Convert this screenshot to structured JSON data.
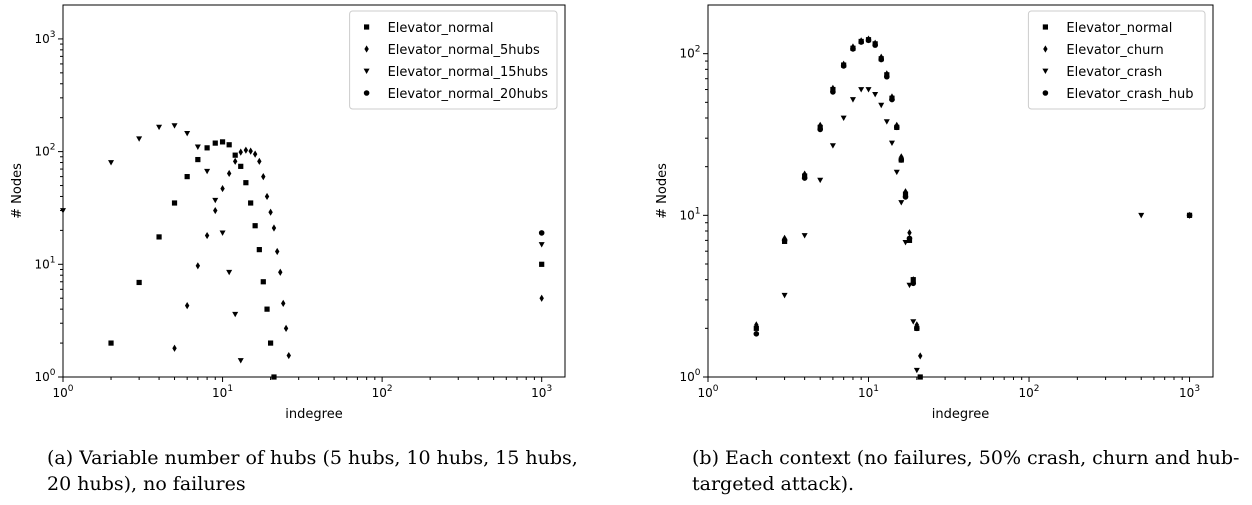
{
  "chart_data": [
    {
      "type": "scatter",
      "xlabel": "indegree",
      "ylabel": "# Nodes",
      "xscale": "log",
      "yscale": "log",
      "xlim": [
        1,
        1400
      ],
      "ylim": [
        1,
        2000
      ],
      "xticks": [
        1,
        10,
        100,
        1000
      ],
      "yticks": [
        1,
        10,
        100,
        1000
      ],
      "legend_position": "top-right",
      "caption": "(a) Variable number of hubs (5 hubs, 10 hubs, 15 hubs, 20 hubs), no failures",
      "series": [
        {
          "name": "Elevator_normal",
          "marker": "square",
          "points": [
            [
              2,
              2
            ],
            [
              3,
              6.9
            ],
            [
              4,
              17.5
            ],
            [
              5,
              35
            ],
            [
              6,
              60
            ],
            [
              7,
              85
            ],
            [
              8,
              108
            ],
            [
              9,
              119
            ],
            [
              10,
              122
            ],
            [
              11,
              115
            ],
            [
              12,
              93
            ],
            [
              13,
              74
            ],
            [
              14,
              53
            ],
            [
              15,
              35
            ],
            [
              16,
              22
            ],
            [
              17,
              13.5
            ],
            [
              18,
              7
            ],
            [
              19,
              4
            ],
            [
              20,
              2
            ],
            [
              21,
              1
            ],
            [
              1000,
              10
            ]
          ]
        },
        {
          "name": "Elevator_normal_5hubs",
          "marker": "diamond",
          "points": [
            [
              5,
              1.8
            ],
            [
              6,
              4.3
            ],
            [
              7,
              9.7
            ],
            [
              8,
              18
            ],
            [
              9,
              30
            ],
            [
              10,
              47
            ],
            [
              11,
              64
            ],
            [
              12,
              82
            ],
            [
              13,
              99
            ],
            [
              14,
              103
            ],
            [
              15,
              101
            ],
            [
              16,
              95
            ],
            [
              17,
              82
            ],
            [
              18,
              60
            ],
            [
              19,
              40
            ],
            [
              20,
              29
            ],
            [
              21,
              21
            ],
            [
              22,
              13
            ],
            [
              23,
              8.5
            ],
            [
              24,
              4.5
            ],
            [
              25,
              2.7
            ],
            [
              26,
              1.55
            ],
            [
              1000,
              5
            ]
          ]
        },
        {
          "name": "Elevator_normal_15hubs",
          "marker": "triangle-down",
          "points": [
            [
              1,
              30
            ],
            [
              2,
              80
            ],
            [
              3,
              130
            ],
            [
              4,
              165
            ],
            [
              5,
              170
            ],
            [
              6,
              145
            ],
            [
              7,
              110
            ],
            [
              8,
              67
            ],
            [
              9,
              37
            ],
            [
              10,
              19
            ],
            [
              11,
              8.5
            ],
            [
              12,
              3.6
            ],
            [
              13,
              1.4
            ],
            [
              1000,
              15
            ]
          ]
        },
        {
          "name": "Elevator_normal_20hubs",
          "marker": "circle",
          "points": [
            [
              1000,
              19
            ]
          ]
        }
      ]
    },
    {
      "type": "scatter",
      "xlabel": "indegree",
      "ylabel": "# Nodes",
      "xscale": "log",
      "yscale": "log",
      "xlim": [
        1,
        1400
      ],
      "ylim": [
        1,
        200
      ],
      "xticks": [
        1,
        10,
        100,
        1000
      ],
      "yticks": [
        1,
        10,
        100
      ],
      "legend_position": "top-right",
      "caption": "(b) Each context (no failures, 50% crash, churn and hub-targeted attack).",
      "series": [
        {
          "name": "Elevator_normal",
          "marker": "square",
          "points": [
            [
              2,
              2
            ],
            [
              3,
              6.9
            ],
            [
              4,
              17.5
            ],
            [
              5,
              35
            ],
            [
              6,
              60
            ],
            [
              7,
              85
            ],
            [
              8,
              108
            ],
            [
              9,
              119
            ],
            [
              10,
              122
            ],
            [
              11,
              115
            ],
            [
              12,
              93
            ],
            [
              13,
              74
            ],
            [
              14,
              53
            ],
            [
              15,
              35
            ],
            [
              16,
              22
            ],
            [
              17,
              13.5
            ],
            [
              18,
              7
            ],
            [
              19,
              4
            ],
            [
              20,
              2
            ],
            [
              21,
              1
            ],
            [
              1000,
              10
            ]
          ]
        },
        {
          "name": "Elevator_churn",
          "marker": "diamond",
          "points": [
            [
              2,
              2.1
            ],
            [
              3,
              7.2
            ],
            [
              4,
              18
            ],
            [
              5,
              36
            ],
            [
              6,
              61
            ],
            [
              7,
              86
            ],
            [
              8,
              110
            ],
            [
              9,
              120
            ],
            [
              10,
              123
            ],
            [
              11,
              116
            ],
            [
              12,
              95
            ],
            [
              13,
              75
            ],
            [
              14,
              54
            ],
            [
              15,
              36
            ],
            [
              16,
              23
            ],
            [
              17,
              14
            ],
            [
              18,
              7.8
            ],
            [
              19,
              4
            ],
            [
              20,
              2.1
            ],
            [
              21,
              1.35
            ],
            [
              1000,
              10
            ]
          ]
        },
        {
          "name": "Elevator_crash",
          "marker": "triangle-down",
          "points": [
            [
              3,
              3.2
            ],
            [
              4,
              7.5
            ],
            [
              5,
              16.5
            ],
            [
              6,
              27
            ],
            [
              7,
              40
            ],
            [
              8,
              52
            ],
            [
              9,
              60
            ],
            [
              10,
              60
            ],
            [
              11,
              56
            ],
            [
              12,
              48
            ],
            [
              13,
              38
            ],
            [
              14,
              28
            ],
            [
              15,
              18.5
            ],
            [
              16,
              12
            ],
            [
              17,
              6.8
            ],
            [
              18,
              3.7
            ],
            [
              19,
              2.2
            ],
            [
              20,
              1.1
            ],
            [
              500,
              10
            ]
          ]
        },
        {
          "name": "Elevator_crash_hub",
          "marker": "circle",
          "points": [
            [
              2,
              1.85
            ],
            [
              3,
              7
            ],
            [
              4,
              17
            ],
            [
              5,
              34
            ],
            [
              6,
              58
            ],
            [
              7,
              84
            ],
            [
              8,
              107
            ],
            [
              9,
              118
            ],
            [
              10,
              121
            ],
            [
              11,
              113
            ],
            [
              12,
              92
            ],
            [
              13,
              72
            ],
            [
              14,
              52
            ],
            [
              15,
              35
            ],
            [
              16,
              22
            ],
            [
              17,
              13
            ],
            [
              18,
              7.2
            ],
            [
              19,
              3.8
            ],
            [
              20,
              2
            ],
            [
              1000,
              10
            ]
          ]
        }
      ]
    }
  ]
}
